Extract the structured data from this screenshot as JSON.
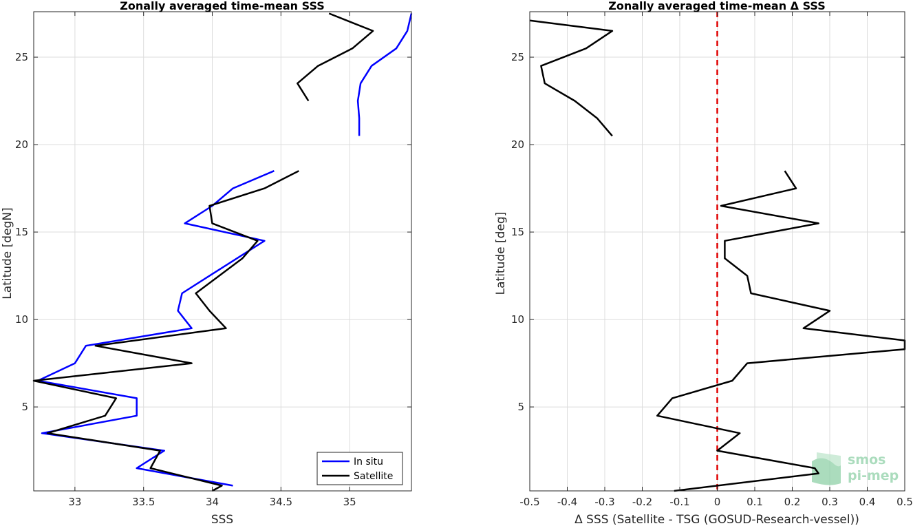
{
  "chart_data": [
    {
      "type": "line",
      "title": "Zonally averaged time-mean SSS",
      "xlabel": "SSS",
      "ylabel": "Latitude [degN]",
      "xlim": [
        32.7,
        35.45
      ],
      "ylim": [
        0.2,
        27.6
      ],
      "xticks": [
        33,
        33.5,
        34,
        34.5,
        35
      ],
      "xtick_labels": [
        "33",
        "33.5",
        "34",
        "34.5",
        "35"
      ],
      "yticks": [
        5,
        10,
        15,
        20,
        25
      ],
      "ytick_labels": [
        "5",
        "10",
        "15",
        "20",
        "25"
      ],
      "grid": true,
      "legend": {
        "location": "bottom-right",
        "entries": [
          "In situ",
          "Satellite"
        ]
      },
      "series": [
        {
          "name": "In situ",
          "color": "#0000ff",
          "segments": [
            [
              [
                34.15,
                0.5
              ],
              [
                33.45,
                1.5
              ],
              [
                33.65,
                2.5
              ],
              [
                32.76,
                3.5
              ],
              [
                33.45,
                4.5
              ],
              [
                33.45,
                5.5
              ],
              [
                32.73,
                6.5
              ],
              [
                33.0,
                7.5
              ],
              [
                33.08,
                8.5
              ],
              [
                33.85,
                9.5
              ],
              [
                33.75,
                10.5
              ],
              [
                33.78,
                11.5
              ],
              [
                33.98,
                12.5
              ],
              [
                34.18,
                13.5
              ],
              [
                34.38,
                14.5
              ],
              [
                33.8,
                15.5
              ],
              [
                34.0,
                16.5
              ],
              [
                34.15,
                17.5
              ],
              [
                34.45,
                18.5
              ]
            ],
            [
              [
                35.07,
                20.5
              ],
              [
                35.07,
                21.5
              ],
              [
                35.06,
                22.5
              ],
              [
                35.08,
                23.5
              ],
              [
                35.16,
                24.5
              ],
              [
                35.34,
                25.5
              ],
              [
                35.42,
                26.5
              ],
              [
                35.45,
                27.5
              ]
            ]
          ]
        },
        {
          "name": "Satellite",
          "color": "#000000",
          "segments": [
            [
              [
                34.0,
                0.2
              ],
              [
                34.07,
                0.5
              ],
              [
                33.55,
                1.5
              ],
              [
                33.62,
                2.5
              ],
              [
                32.8,
                3.5
              ],
              [
                33.22,
                4.5
              ],
              [
                33.3,
                5.5
              ],
              [
                32.7,
                6.5
              ],
              [
                33.85,
                7.5
              ],
              [
                33.15,
                8.5
              ],
              [
                34.1,
                9.5
              ],
              [
                33.98,
                10.5
              ],
              [
                33.88,
                11.5
              ],
              [
                34.05,
                12.5
              ],
              [
                34.22,
                13.5
              ],
              [
                34.33,
                14.5
              ],
              [
                34.0,
                15.5
              ],
              [
                33.98,
                16.5
              ],
              [
                34.38,
                17.5
              ],
              [
                34.63,
                18.5
              ]
            ],
            [
              [
                34.7,
                22.5
              ],
              [
                34.62,
                23.5
              ],
              [
                34.77,
                24.5
              ],
              [
                35.02,
                25.5
              ],
              [
                35.17,
                26.5
              ],
              [
                34.85,
                27.5
              ]
            ]
          ]
        }
      ]
    },
    {
      "type": "line",
      "title": "Zonally averaged time-mean Δ SSS",
      "xlabel": "Δ SSS (Satellite - TSG (GOSUD-Research-vessel))",
      "ylabel": "Latitude [deg]",
      "xlim": [
        -0.5,
        0.5
      ],
      "ylim": [
        0.2,
        27.6
      ],
      "xticks": [
        -0.5,
        -0.4,
        -0.3,
        -0.2,
        -0.1,
        0,
        0.1,
        0.2,
        0.3,
        0.4,
        0.5
      ],
      "xtick_labels": [
        "-0.5",
        "-0.4",
        "-0.3",
        "-0.2",
        "-0.1",
        "0",
        "0.1",
        "0.2",
        "0.3",
        "0.4",
        "0.5"
      ],
      "yticks": [
        5,
        10,
        15,
        20,
        25
      ],
      "ytick_labels": [
        "5",
        "10",
        "15",
        "20",
        "25"
      ],
      "grid": true,
      "reference_line": {
        "x": 0,
        "color": "#e00000",
        "style": "dashed"
      },
      "series": [
        {
          "color": "#000000",
          "segments": [
            [
              [
                -0.115,
                0.2
              ],
              [
                0.27,
                1.2
              ],
              [
                0.26,
                1.5
              ],
              [
                0.0,
                2.5
              ],
              [
                0.06,
                3.5
              ],
              [
                -0.16,
                4.5
              ],
              [
                -0.12,
                5.5
              ],
              [
                0.04,
                6.5
              ],
              [
                0.08,
                7.5
              ],
              [
                0.5,
                8.3
              ],
              [
                0.5,
                8.8
              ],
              [
                0.23,
                9.5
              ],
              [
                0.3,
                10.5
              ],
              [
                0.09,
                11.5
              ],
              [
                0.08,
                12.5
              ],
              [
                0.02,
                13.5
              ],
              [
                0.02,
                14.5
              ],
              [
                0.27,
                15.5
              ],
              [
                0.01,
                16.5
              ],
              [
                0.21,
                17.5
              ],
              [
                0.18,
                18.5
              ]
            ],
            [
              [
                -0.28,
                20.5
              ],
              [
                -0.32,
                21.5
              ],
              [
                -0.38,
                22.5
              ],
              [
                -0.46,
                23.5
              ],
              [
                -0.47,
                24.5
              ],
              [
                -0.35,
                25.5
              ],
              [
                -0.28,
                26.5
              ],
              [
                -0.5,
                27.1
              ]
            ]
          ]
        }
      ]
    }
  ],
  "branding": {
    "logo_line1": "smos",
    "logo_line2": "pi-mep"
  }
}
